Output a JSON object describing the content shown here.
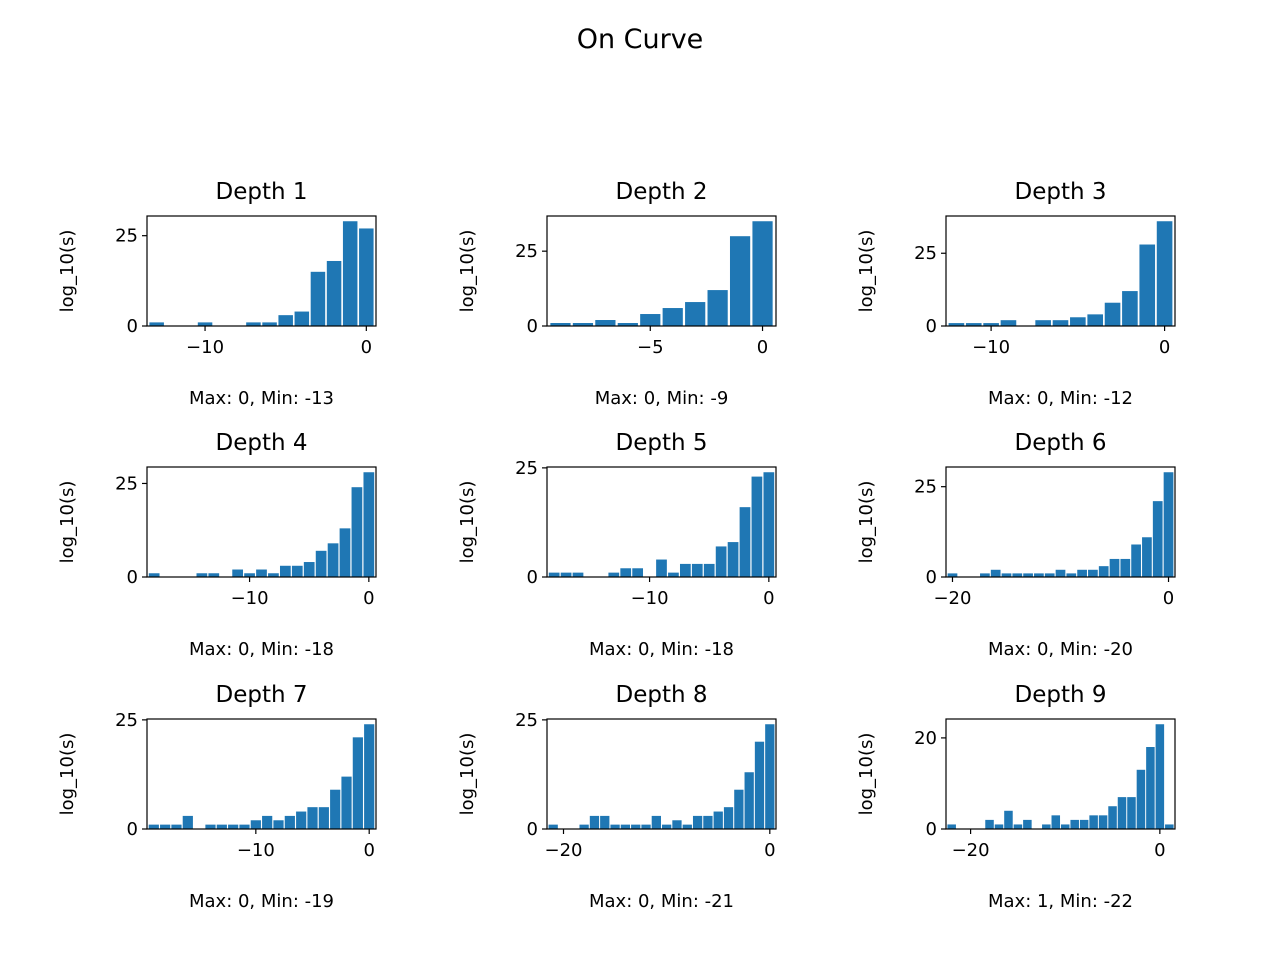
{
  "figure": {
    "title": "On Curve",
    "bar_color": "#1f77b4"
  },
  "chart_data": [
    {
      "type": "bar",
      "title": "Depth 1",
      "ylabel": "log_10(s)",
      "xlabel": "Max: 0, Min: -13",
      "x": [
        -13,
        -12,
        -11,
        -10,
        -9,
        -8,
        -7,
        -6,
        -5,
        -4,
        -3,
        -2,
        -1,
        0
      ],
      "values": [
        1,
        0,
        0,
        1,
        0,
        0,
        1,
        1,
        3,
        4,
        15,
        18,
        29,
        27
      ],
      "xlim": [
        -13.6,
        0.6
      ],
      "ylim": [
        0,
        30.45
      ],
      "xticks": [
        -10,
        0
      ],
      "yticks": [
        0,
        25
      ]
    },
    {
      "type": "bar",
      "title": "Depth 2",
      "ylabel": "log_10(s)",
      "xlabel": "Max: 0, Min: -9",
      "x": [
        -9,
        -8,
        -7,
        -6,
        -5,
        -4,
        -3,
        -2,
        -1,
        0
      ],
      "values": [
        1,
        1,
        2,
        1,
        4,
        6,
        8,
        12,
        30,
        35
      ],
      "xlim": [
        -9.6,
        0.6
      ],
      "ylim": [
        0,
        36.75
      ],
      "xticks": [
        -5,
        0
      ],
      "yticks": [
        0,
        25
      ]
    },
    {
      "type": "bar",
      "title": "Depth 3",
      "ylabel": "log_10(s)",
      "xlabel": "Max: 0, Min: -12",
      "x": [
        -12,
        -11,
        -10,
        -9,
        -8,
        -7,
        -6,
        -5,
        -4,
        -3,
        -2,
        -1,
        0
      ],
      "values": [
        1,
        1,
        1,
        2,
        0,
        2,
        2,
        3,
        4,
        8,
        12,
        28,
        36
      ],
      "xlim": [
        -12.6,
        0.6
      ],
      "ylim": [
        0,
        37.8
      ],
      "xticks": [
        -10,
        0
      ],
      "yticks": [
        0,
        25
      ]
    },
    {
      "type": "bar",
      "title": "Depth 4",
      "ylabel": "log_10(s)",
      "xlabel": "Max: 0, Min: -18",
      "x": [
        -18,
        -17,
        -16,
        -15,
        -14,
        -13,
        -12,
        -11,
        -10,
        -9,
        -8,
        -7,
        -6,
        -5,
        -4,
        -3,
        -2,
        -1,
        0
      ],
      "values": [
        1,
        0,
        0,
        0,
        1,
        1,
        0,
        2,
        1,
        2,
        1,
        3,
        3,
        4,
        7,
        9,
        13,
        24,
        28
      ],
      "xlim": [
        -18.6,
        0.6
      ],
      "ylim": [
        0,
        29.4
      ],
      "xticks": [
        -10,
        0
      ],
      "yticks": [
        0,
        25
      ]
    },
    {
      "type": "bar",
      "title": "Depth 5",
      "ylabel": "log_10(s)",
      "xlabel": "Max: 0, Min: -18",
      "x": [
        -18,
        -17,
        -16,
        -15,
        -14,
        -13,
        -12,
        -11,
        -10,
        -9,
        -8,
        -7,
        -6,
        -5,
        -4,
        -3,
        -2,
        -1,
        0
      ],
      "values": [
        1,
        1,
        1,
        0,
        0,
        1,
        2,
        2,
        0,
        4,
        1,
        3,
        3,
        3,
        7,
        8,
        16,
        23,
        24
      ],
      "xlim": [
        -18.6,
        0.6
      ],
      "ylim": [
        0,
        25.2
      ],
      "xticks": [
        -10,
        0
      ],
      "yticks": [
        0,
        25
      ]
    },
    {
      "type": "bar",
      "title": "Depth 6",
      "ylabel": "log_10(s)",
      "xlabel": "Max: 0, Min: -20",
      "x": [
        -20,
        -19,
        -18,
        -17,
        -16,
        -15,
        -14,
        -13,
        -12,
        -11,
        -10,
        -9,
        -8,
        -7,
        -6,
        -5,
        -4,
        -3,
        -2,
        -1,
        0
      ],
      "values": [
        1,
        0,
        0,
        1,
        2,
        1,
        1,
        1,
        1,
        1,
        2,
        1,
        2,
        2,
        3,
        5,
        5,
        9,
        11,
        21,
        29
      ],
      "xlim": [
        -20.6,
        0.6
      ],
      "ylim": [
        0,
        30.45
      ],
      "xticks": [
        -20,
        0
      ],
      "yticks": [
        0,
        25
      ]
    },
    {
      "type": "bar",
      "title": "Depth 7",
      "ylabel": "log_10(s)",
      "xlabel": "Max: 0, Min: -19",
      "x": [
        -19,
        -18,
        -17,
        -16,
        -15,
        -14,
        -13,
        -12,
        -11,
        -10,
        -9,
        -8,
        -7,
        -6,
        -5,
        -4,
        -3,
        -2,
        -1,
        0
      ],
      "values": [
        1,
        1,
        1,
        3,
        0,
        1,
        1,
        1,
        1,
        2,
        3,
        2,
        3,
        4,
        5,
        5,
        9,
        12,
        21,
        24
      ],
      "xlim": [
        -19.6,
        0.6
      ],
      "ylim": [
        0,
        25.2
      ],
      "xticks": [
        -10,
        0
      ],
      "yticks": [
        0,
        25
      ]
    },
    {
      "type": "bar",
      "title": "Depth 8",
      "ylabel": "log_10(s)",
      "xlabel": "Max: 0, Min: -21",
      "x": [
        -21,
        -20,
        -19,
        -18,
        -17,
        -16,
        -15,
        -14,
        -13,
        -12,
        -11,
        -10,
        -9,
        -8,
        -7,
        -6,
        -5,
        -4,
        -3,
        -2,
        -1,
        0
      ],
      "values": [
        1,
        0,
        0,
        1,
        3,
        3,
        1,
        1,
        1,
        1,
        3,
        1,
        2,
        1,
        3,
        3,
        4,
        5,
        9,
        13,
        20,
        24
      ],
      "xlim": [
        -21.6,
        0.6
      ],
      "ylim": [
        0,
        25.2
      ],
      "xticks": [
        -20,
        0
      ],
      "yticks": [
        0,
        25
      ]
    },
    {
      "type": "bar",
      "title": "Depth 9",
      "ylabel": "log_10(s)",
      "xlabel": "Max: 1, Min: -22",
      "x": [
        -22,
        -21,
        -20,
        -19,
        -18,
        -17,
        -16,
        -15,
        -14,
        -13,
        -12,
        -11,
        -10,
        -9,
        -8,
        -7,
        -6,
        -5,
        -4,
        -3,
        -2,
        -1,
        0,
        1
      ],
      "values": [
        1,
        0,
        0,
        0,
        2,
        1,
        4,
        1,
        2,
        0,
        1,
        3,
        1,
        2,
        2,
        3,
        3,
        5,
        7,
        7,
        13,
        18,
        23,
        1
      ],
      "xlim": [
        -22.6,
        1.6
      ],
      "ylim": [
        0,
        24.15
      ],
      "xticks": [
        -20,
        0
      ],
      "yticks": [
        0,
        20
      ]
    }
  ]
}
